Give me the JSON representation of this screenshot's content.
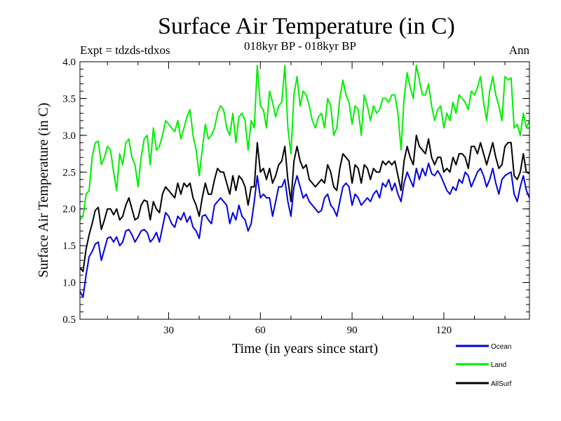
{
  "chart_data": {
    "type": "line",
    "title": "Surface Air Temperature (in C)",
    "subtitle": "018kyr BP - 018kyr BP",
    "left_note": "Expt = tdzds-tdxos",
    "right_note": "Ann",
    "xlabel": "Time (in years since start)",
    "ylabel": "Surface Air Temperature (in C)",
    "xlim": [
      1,
      148
    ],
    "ylim": [
      0.5,
      4.0
    ],
    "x_ticks": [
      30,
      60,
      90,
      120
    ],
    "y_ticks": [
      0.5,
      1.0,
      1.5,
      2.0,
      2.5,
      3.0,
      3.5,
      4.0
    ],
    "y_tick_labels": [
      "0.5",
      "1.0",
      "1.5",
      "2.0",
      "2.5",
      "3.0",
      "3.5",
      "4.0"
    ],
    "x": [
      1,
      2,
      3,
      4,
      5,
      6,
      7,
      8,
      9,
      10,
      11,
      12,
      13,
      14,
      15,
      16,
      17,
      18,
      19,
      20,
      21,
      22,
      23,
      24,
      25,
      26,
      27,
      28,
      29,
      30,
      31,
      32,
      33,
      34,
      35,
      36,
      37,
      38,
      39,
      40,
      41,
      42,
      43,
      44,
      45,
      46,
      47,
      48,
      49,
      50,
      51,
      52,
      53,
      54,
      55,
      56,
      57,
      58,
      59,
      60,
      61,
      62,
      63,
      64,
      65,
      66,
      67,
      68,
      69,
      70,
      71,
      72,
      73,
      74,
      75,
      76,
      77,
      78,
      79,
      80,
      81,
      82,
      83,
      84,
      85,
      86,
      87,
      88,
      89,
      90,
      91,
      92,
      93,
      94,
      95,
      96,
      97,
      98,
      99,
      100,
      101,
      102,
      103,
      104,
      105,
      106,
      107,
      108,
      109,
      110,
      111,
      112,
      113,
      114,
      115,
      116,
      117,
      118,
      119,
      120,
      121,
      122,
      123,
      124,
      125,
      126,
      127,
      128,
      129,
      130,
      131,
      132,
      133,
      134,
      135,
      136,
      137,
      138,
      139,
      140,
      141,
      142,
      143,
      144,
      145,
      146,
      147,
      148
    ],
    "series": [
      {
        "name": "Ocean",
        "color": "#0000dd",
        "values": [
          0.88,
          0.8,
          1.1,
          1.35,
          1.42,
          1.52,
          1.55,
          1.3,
          1.45,
          1.6,
          1.62,
          1.55,
          1.62,
          1.5,
          1.55,
          1.7,
          1.72,
          1.65,
          1.55,
          1.62,
          1.7,
          1.72,
          1.68,
          1.55,
          1.6,
          1.68,
          1.55,
          1.75,
          1.95,
          1.9,
          1.8,
          1.75,
          1.9,
          1.85,
          1.95,
          1.82,
          1.9,
          1.75,
          1.7,
          1.6,
          1.9,
          1.92,
          1.85,
          1.8,
          2.05,
          2.1,
          2.15,
          2.1,
          2.05,
          1.8,
          1.95,
          1.85,
          2.05,
          1.9,
          1.85,
          1.7,
          1.8,
          2.1,
          2.45,
          2.15,
          2.2,
          2.15,
          2.15,
          1.9,
          2.1,
          2.3,
          2.3,
          2.4,
          2.1,
          1.9,
          2.3,
          2.45,
          2.3,
          2.15,
          2.2,
          2.1,
          2.05,
          2.0,
          1.95,
          1.98,
          2.15,
          2.2,
          2.05,
          2.0,
          1.9,
          2.1,
          2.3,
          2.35,
          2.3,
          2.05,
          2.2,
          2.15,
          2.05,
          2.1,
          2.15,
          2.1,
          2.2,
          2.25,
          2.15,
          2.35,
          2.3,
          2.4,
          2.25,
          2.35,
          2.2,
          2.1,
          2.35,
          2.5,
          2.4,
          2.3,
          2.55,
          2.4,
          2.55,
          2.45,
          2.62,
          2.48,
          2.45,
          2.52,
          2.45,
          2.35,
          2.25,
          2.2,
          2.3,
          2.25,
          2.4,
          2.35,
          2.5,
          2.45,
          2.3,
          2.4,
          2.5,
          2.55,
          2.45,
          2.3,
          2.4,
          2.55,
          2.35,
          2.2,
          2.4,
          2.45,
          2.48,
          2.5,
          2.2,
          2.1,
          2.3,
          2.45,
          2.25,
          2.15
        ]
      },
      {
        "name": "Land",
        "color": "#00ee00",
        "values": [
          1.85,
          1.9,
          2.2,
          2.25,
          2.7,
          2.9,
          2.92,
          2.6,
          2.7,
          2.85,
          2.8,
          2.5,
          2.25,
          2.75,
          2.6,
          2.9,
          2.95,
          2.7,
          2.6,
          2.3,
          2.7,
          2.95,
          3.0,
          2.6,
          3.1,
          2.8,
          2.85,
          3.0,
          3.2,
          3.15,
          3.1,
          3.05,
          3.2,
          2.95,
          3.1,
          3.25,
          3.35,
          3.0,
          2.8,
          2.45,
          2.8,
          3.15,
          2.95,
          3.0,
          3.1,
          3.3,
          3.4,
          3.35,
          3.1,
          3.0,
          3.3,
          2.9,
          3.25,
          3.3,
          3.2,
          2.8,
          3.2,
          3.1,
          3.95,
          3.4,
          3.35,
          3.1,
          3.6,
          3.45,
          3.25,
          3.4,
          3.45,
          3.95,
          3.1,
          2.75,
          3.55,
          3.8,
          3.4,
          3.6,
          3.55,
          3.4,
          3.2,
          3.1,
          3.25,
          3.3,
          3.1,
          3.5,
          3.4,
          3.0,
          3.1,
          3.5,
          3.75,
          3.55,
          3.45,
          3.15,
          3.4,
          3.35,
          3.0,
          3.55,
          3.4,
          3.2,
          3.4,
          3.3,
          3.35,
          3.5,
          3.5,
          3.45,
          3.55,
          3.55,
          3.3,
          2.8,
          3.5,
          3.85,
          3.65,
          3.5,
          3.95,
          3.75,
          3.55,
          3.55,
          3.7,
          3.4,
          3.2,
          3.35,
          3.4,
          3.1,
          3.3,
          3.2,
          3.45,
          3.3,
          3.55,
          3.5,
          3.45,
          3.35,
          3.6,
          3.55,
          3.65,
          3.8,
          3.45,
          3.2,
          3.6,
          3.8,
          3.55,
          3.4,
          3.2,
          3.8,
          3.75,
          3.78,
          3.1,
          3.15,
          3.0,
          3.3,
          3.1,
          3.2
        ]
      },
      {
        "name": "AllSurf",
        "color": "#000000",
        "values": [
          1.2,
          1.15,
          1.45,
          1.65,
          1.8,
          1.98,
          2.02,
          1.72,
          1.85,
          2.0,
          2.0,
          1.92,
          2.0,
          1.85,
          1.9,
          2.05,
          2.15,
          2.0,
          1.85,
          1.88,
          2.05,
          2.12,
          2.1,
          1.85,
          2.1,
          2.0,
          1.95,
          2.2,
          2.3,
          2.25,
          2.2,
          2.15,
          2.35,
          2.2,
          2.35,
          2.3,
          2.35,
          2.15,
          2.05,
          1.9,
          2.15,
          2.35,
          2.2,
          2.2,
          2.4,
          2.55,
          2.5,
          2.5,
          2.35,
          2.2,
          2.45,
          2.25,
          2.45,
          2.4,
          2.3,
          2.05,
          2.3,
          2.3,
          2.9,
          2.5,
          2.55,
          2.4,
          2.55,
          2.35,
          2.45,
          2.6,
          2.65,
          2.85,
          2.4,
          2.1,
          2.65,
          2.85,
          2.65,
          2.55,
          2.6,
          2.4,
          2.35,
          2.3,
          2.35,
          2.4,
          2.35,
          2.6,
          2.5,
          2.3,
          2.25,
          2.55,
          2.75,
          2.7,
          2.65,
          2.35,
          2.6,
          2.55,
          2.35,
          2.6,
          2.55,
          2.4,
          2.55,
          2.5,
          2.5,
          2.65,
          2.6,
          2.65,
          2.6,
          2.65,
          2.45,
          2.25,
          2.65,
          2.85,
          2.7,
          2.6,
          3.0,
          2.85,
          2.8,
          2.75,
          2.95,
          2.7,
          2.6,
          2.7,
          2.7,
          2.5,
          2.55,
          2.5,
          2.7,
          2.6,
          2.75,
          2.75,
          2.7,
          2.55,
          2.85,
          2.85,
          2.75,
          2.9,
          2.75,
          2.6,
          2.75,
          2.9,
          2.7,
          2.55,
          2.6,
          2.85,
          2.9,
          2.9,
          2.45,
          2.4,
          2.5,
          2.75,
          2.5,
          2.48
        ]
      }
    ],
    "legend_position": "bottom-right"
  }
}
